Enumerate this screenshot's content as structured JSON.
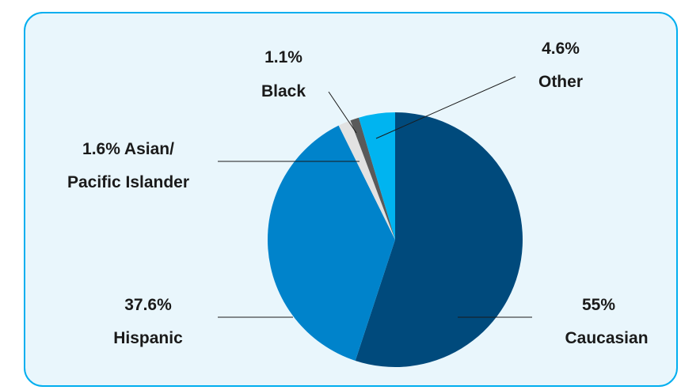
{
  "chart_data": {
    "type": "pie",
    "title": "",
    "start_angle_deg": 0,
    "direction": "clockwise",
    "slices": [
      {
        "name": "Caucasian",
        "value": 55,
        "color": "#004a7c"
      },
      {
        "name": "Hispanic",
        "value": 37.6,
        "color": "#0083cb"
      },
      {
        "name": "Asian/ Pacific Islander",
        "value": 1.6,
        "color": "#e2e2e2"
      },
      {
        "name": "Black",
        "value": 1.1,
        "color": "#5a5a5a"
      },
      {
        "name": "Other",
        "value": 4.6,
        "color": "#00b4f0"
      }
    ],
    "labels": {
      "caucasian": {
        "line1": "55%",
        "line2": "Caucasian"
      },
      "hispanic": {
        "line1": "37.6%",
        "line2": "Hispanic"
      },
      "asian": {
        "line1": "1.6% Asian/",
        "line2": "Pacific Islander"
      },
      "black": {
        "line1": "1.1%",
        "line2": "Black"
      },
      "other": {
        "line1": "4.6%",
        "line2": "Other"
      }
    },
    "legend": "none"
  },
  "colors": {
    "card_border": "#00aeef",
    "card_background": "#e9f6fc",
    "leader_line": "#1a1a1a"
  }
}
